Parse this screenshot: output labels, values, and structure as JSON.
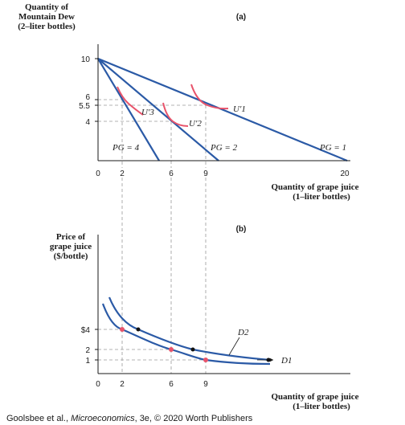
{
  "colors": {
    "budget": "#2b5aa6",
    "indiff": "#e8546b",
    "axis": "#1a1a1a",
    "guide": "#9a9a9a",
    "dot_black": "#111111",
    "dot_red": "#e8546b"
  },
  "chart_data": [
    {
      "panel": "(a)",
      "type": "line",
      "ylabel_lines": [
        "Quantity of",
        "Mountain Dew",
        "(2–liter bottles)"
      ],
      "xlabel_lines": [
        "Quantity of grape juice",
        "(1–liter bottles)"
      ],
      "x_ticks": [
        "0",
        "2",
        "6",
        "9",
        "20"
      ],
      "y_ticks": [
        "10",
        "6",
        "5.5",
        "4"
      ],
      "budget_lines": [
        {
          "label": "P_G = 4",
          "intercept": 10,
          "slope": -2
        },
        {
          "label": "P_G = 2",
          "intercept": 10,
          "slope": -1
        },
        {
          "label": "P_G = 1",
          "intercept": 10,
          "slope": -0.5
        }
      ],
      "optima": [
        {
          "x": 2,
          "y": 6,
          "curve": "U'3"
        },
        {
          "x": 6,
          "y": 4,
          "curve": "U'2"
        },
        {
          "x": 9,
          "y": 5.5,
          "curve": "U'1"
        }
      ]
    },
    {
      "panel": "(b)",
      "type": "line",
      "ylabel_lines": [
        "Price of",
        "grape juice",
        "($/bottle)"
      ],
      "xlabel_lines": [
        "Quantity of grape juice",
        "(1–liter bottles)"
      ],
      "x_ticks": [
        "0",
        "2",
        "6",
        "9"
      ],
      "y_ticks": [
        "$4",
        "2",
        "1"
      ],
      "series": [
        {
          "name": "D1",
          "points": [
            [
              2,
              4
            ],
            [
              6,
              2
            ],
            [
              9,
              1
            ]
          ]
        },
        {
          "name": "D2",
          "points": [
            [
              3,
              4
            ],
            [
              8,
              2
            ],
            [
              12,
              1
            ]
          ]
        }
      ]
    }
  ],
  "text": {
    "panel_a": "(a)",
    "panel_b": "(b)",
    "a_ylabel": [
      "Quantity of",
      "Mountain Dew",
      "(2–liter bottles)"
    ],
    "a_xlabel": [
      "Quantity of grape juice",
      "(1–liter bottles)"
    ],
    "b_ylabel": [
      "Price of",
      "grape juice",
      "($/bottle)"
    ],
    "b_xlabel": [
      "Quantity of grape juice",
      "(1–liter bottles)"
    ],
    "a_yticks": [
      "10",
      "6",
      "5.5",
      "4"
    ],
    "a_xticks": [
      "0",
      "2",
      "6",
      "9",
      "20"
    ],
    "b_yticks": [
      "$4",
      "2",
      "1"
    ],
    "b_xticks": [
      "0",
      "2",
      "6",
      "9"
    ],
    "budget_labels": [
      "PG = 4",
      "PG = 2",
      "PG = 1"
    ],
    "u_labels": [
      "U′3",
      "U′2",
      "U′1"
    ],
    "d_labels": [
      "D2",
      "D1"
    ],
    "credit_prefix": "Goolsbee et al., ",
    "credit_title": "Microeconomics",
    "credit_suffix": ", 3e, © 2020 Worth Publishers"
  }
}
